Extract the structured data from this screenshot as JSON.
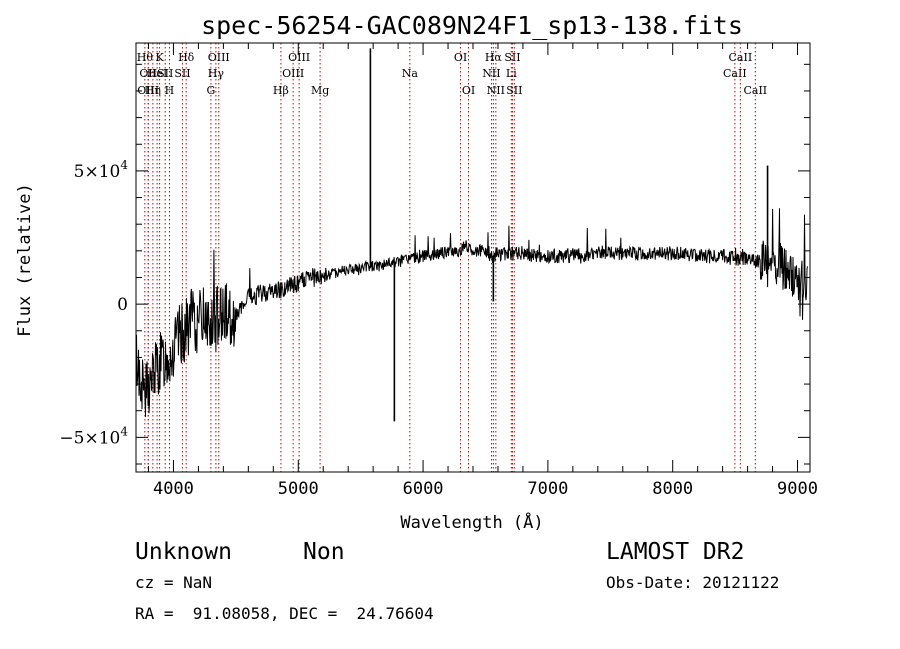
{
  "chart_data": {
    "type": "line",
    "title": "spec-56254-GAC089N24F1_sp13-138.fits",
    "xlabel": "Wavelength (Å)",
    "ylabel": "Flux (relative)",
    "xlim": [
      3700,
      9100
    ],
    "ylim": [
      -63000,
      98000
    ],
    "x_ticks": [
      4000,
      5000,
      6000,
      7000,
      8000,
      9000
    ],
    "x_tick_labels": [
      "4000",
      "5000",
      "6000",
      "7000",
      "8000",
      "9000"
    ],
    "y_ticks": [
      -50000,
      0,
      50000
    ],
    "y_tick_labels": [
      {
        "base": "−5×10",
        "exp": "4"
      },
      {
        "base": "0",
        "exp": ""
      },
      {
        "base": "5×10",
        "exp": "4"
      }
    ],
    "grid": false,
    "legend": "none",
    "series_color": "#000000",
    "line_marker_color": "#cc0000",
    "series": [
      {
        "x": [
          3700,
          3750,
          3800,
          3850,
          3900,
          3950,
          4000,
          4050,
          4100,
          4150,
          4200,
          4250,
          4300,
          4350,
          4400,
          4500,
          4600,
          4700,
          4800,
          4900,
          5000,
          5100,
          5200,
          5300,
          5400,
          5500,
          5560,
          5600,
          5700,
          5800,
          5900,
          6000,
          6100,
          6200,
          6300,
          6350,
          6400,
          6500,
          6560,
          6600,
          6700,
          6800,
          6900,
          7000,
          7100,
          7200,
          7300,
          7400,
          7500,
          7600,
          7700,
          7800,
          7900,
          8000,
          8100,
          8200,
          8300,
          8400,
          8500,
          8600,
          8700,
          8750,
          8800,
          8850,
          8900,
          8950,
          9000,
          9050,
          9080
        ],
        "y": [
          -20000,
          -30000,
          -32000,
          -25000,
          -22000,
          -20000,
          -18000,
          -12000,
          -10000,
          -5000,
          -8000,
          -2000,
          -10000,
          -5000,
          -3000,
          -5000,
          2000,
          4000,
          5000,
          6000,
          8000,
          10000,
          10000,
          12000,
          13000,
          13000,
          14000,
          14000,
          15000,
          16000,
          17000,
          18000,
          19000,
          19500,
          20000,
          22000,
          20000,
          20000,
          18000,
          19000,
          19000,
          19000,
          18000,
          18000,
          18000,
          18500,
          18500,
          19000,
          19500,
          19000,
          19000,
          18500,
          19000,
          19000,
          19000,
          18500,
          18000,
          18000,
          17000,
          17000,
          16000,
          15000,
          17000,
          15000,
          12000,
          10000,
          8000,
          8000,
          8000
        ]
      }
    ],
    "spikes": [
      {
        "x": 5578,
        "y": 96000
      },
      {
        "x": 5770,
        "y": -44000
      },
      {
        "x": 6563,
        "y": 1000
      },
      {
        "x": 8760,
        "y": 52000
      }
    ],
    "lines": [
      {
        "x": 3771,
        "labels": [
          "Hθ"
        ],
        "row": 1
      },
      {
        "x": 3798,
        "labels": [
          "OII"
        ],
        "row": 2
      },
      {
        "x": 3798,
        "labels": [
          "OIII"
        ],
        "row": 3
      },
      {
        "x": 3835,
        "labels": [
          "Hη"
        ],
        "row": 3
      },
      {
        "x": 3869,
        "labels": [
          "HeI"
        ],
        "row": 2
      },
      {
        "x": 3889,
        "labels": [
          "K"
        ],
        "row": 1
      },
      {
        "x": 3934,
        "labels": [
          "SII"
        ],
        "row": 2
      },
      {
        "x": 3968,
        "labels": [
          "H"
        ],
        "row": 3
      },
      {
        "x": 4072,
        "labels": [
          "SII"
        ],
        "row": 2
      },
      {
        "x": 4102,
        "labels": [
          "Hδ"
        ],
        "row": 1
      },
      {
        "x": 4300,
        "labels": [
          "G"
        ],
        "row": 3
      },
      {
        "x": 4340,
        "labels": [
          "Hγ"
        ],
        "row": 2
      },
      {
        "x": 4363,
        "labels": [
          "OIII"
        ],
        "row": 1
      },
      {
        "x": 4861,
        "labels": [
          "Hβ"
        ],
        "row": 3
      },
      {
        "x": 4959,
        "labels": [
          "OIII"
        ],
        "row": 2
      },
      {
        "x": 5007,
        "labels": [
          "OIII"
        ],
        "row": 1
      },
      {
        "x": 5175,
        "labels": [
          "Mg"
        ],
        "row": 3
      },
      {
        "x": 5894,
        "labels": [
          "Na"
        ],
        "row": 2
      },
      {
        "x": 6300,
        "labels": [
          "OI"
        ],
        "row": 1
      },
      {
        "x": 6364,
        "labels": [
          "OI"
        ],
        "row": 3
      },
      {
        "x": 6548,
        "labels": [
          "NII"
        ],
        "row": 2
      },
      {
        "x": 6563,
        "labels": [
          "Hα"
        ],
        "row": 1
      },
      {
        "x": 6583,
        "labels": [
          "NII"
        ],
        "row": 3
      },
      {
        "x": 6707,
        "labels": [
          "Li"
        ],
        "row": 2
      },
      {
        "x": 6716,
        "labels": [
          "SII"
        ],
        "row": 1
      },
      {
        "x": 6731,
        "labels": [
          "SII"
        ],
        "row": 3
      },
      {
        "x": 8498,
        "labels": [
          "CaII"
        ],
        "row": 2
      },
      {
        "x": 8542,
        "labels": [
          "CaII"
        ],
        "row": 1
      },
      {
        "x": 8662,
        "labels": [
          "CaII"
        ],
        "row": 3
      }
    ]
  },
  "footer": {
    "class_label": "Unknown",
    "subclass_label": "Non",
    "survey_label": "LAMOST DR2",
    "cz_label": "cz = NaN",
    "obs_date_label": "Obs-Date: 20121122",
    "coords_label": "RA =  91.08058, DEC =  24.76604"
  }
}
